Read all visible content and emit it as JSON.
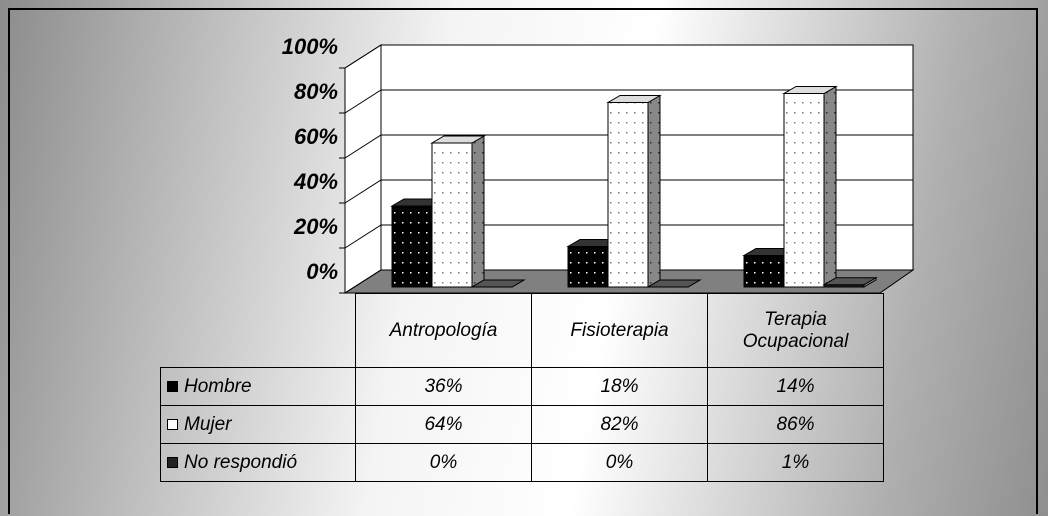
{
  "chart_data": {
    "type": "bar3d",
    "categories": [
      "Antropología",
      "Fisioterapia",
      "Terapia Ocupacional"
    ],
    "series": [
      {
        "name": "Hombre",
        "color": "#000000",
        "values": [
          36,
          18,
          14
        ],
        "value_labels": [
          "36%",
          "18%",
          "14%"
        ]
      },
      {
        "name": "Mujer",
        "color": "#ffffff",
        "values": [
          64,
          82,
          86
        ],
        "value_labels": [
          "64%",
          "82%",
          "86%"
        ]
      },
      {
        "name": "No respondió",
        "color": "#202020",
        "values": [
          0,
          0,
          1
        ],
        "value_labels": [
          "0%",
          "0%",
          "1%"
        ]
      }
    ],
    "ylim": [
      0,
      100
    ],
    "yticks": [
      {
        "value": 0,
        "label": "0%"
      },
      {
        "value": 20,
        "label": "20%"
      },
      {
        "value": 40,
        "label": "40%"
      },
      {
        "value": 60,
        "label": "60%"
      },
      {
        "value": 80,
        "label": "80%"
      },
      {
        "value": 100,
        "label": "100%"
      }
    ],
    "grid": true
  }
}
